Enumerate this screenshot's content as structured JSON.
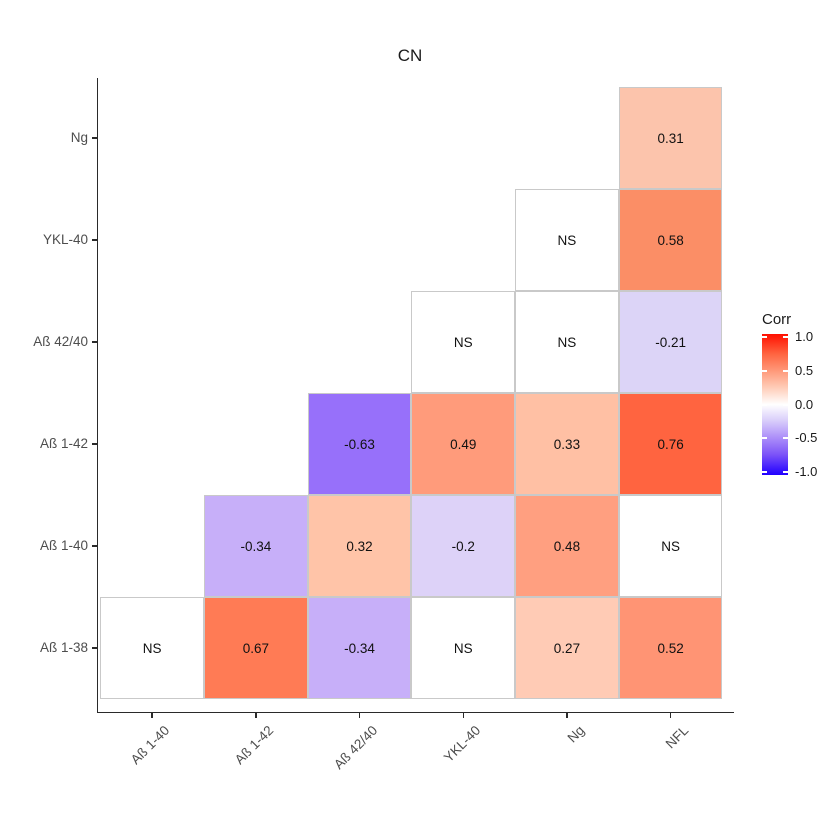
{
  "title": "CN",
  "chart_data": {
    "type": "heatmap",
    "title": "CN",
    "subtitle": "",
    "x_categories": [
      "Aß 1-40",
      "Aß 1-42",
      "Aß 42/40",
      "YKL-40",
      "Ng",
      "NFL"
    ],
    "y_categories_top_to_bottom": [
      "Ng",
      "YKL-40",
      "Aß 42/40",
      "Aß 1-42",
      "Aß 1-40",
      "Aß 1-38"
    ],
    "na_label": "NS",
    "cells": [
      {
        "row": "Ng",
        "col": "NFL",
        "label": "0.31",
        "value": 0.31,
        "color": "#FCC4AC"
      },
      {
        "row": "YKL-40",
        "col": "Ng",
        "label": "NS",
        "value": null,
        "color": "#FFFFFF"
      },
      {
        "row": "YKL-40",
        "col": "NFL",
        "label": "0.58",
        "value": 0.58,
        "color": "#FB8E66"
      },
      {
        "row": "Aß 42/40",
        "col": "YKL-40",
        "label": "NS",
        "value": null,
        "color": "#FFFFFF"
      },
      {
        "row": "Aß 42/40",
        "col": "Ng",
        "label": "NS",
        "value": null,
        "color": "#FFFFFF"
      },
      {
        "row": "Aß 42/40",
        "col": "NFL",
        "label": "-0.21",
        "value": -0.21,
        "color": "#DCD4F7"
      },
      {
        "row": "Aß 1-42",
        "col": "Aß 42/40",
        "label": "-0.63",
        "value": -0.63,
        "color": "#9770FA"
      },
      {
        "row": "Aß 1-42",
        "col": "YKL-40",
        "label": "0.49",
        "value": 0.49,
        "color": "#FF9B7B"
      },
      {
        "row": "Aß 1-42",
        "col": "Ng",
        "label": "0.33",
        "value": 0.33,
        "color": "#FFC0A4"
      },
      {
        "row": "Aß 1-42",
        "col": "NFL",
        "label": "0.76",
        "value": 0.76,
        "color": "#FF6440"
      },
      {
        "row": "Aß 1-40",
        "col": "Aß 1-42",
        "label": "-0.34",
        "value": -0.34,
        "color": "#C7AFF9"
      },
      {
        "row": "Aß 1-40",
        "col": "Aß 42/40",
        "label": "0.32",
        "value": 0.32,
        "color": "#FFC4A8"
      },
      {
        "row": "Aß 1-40",
        "col": "YKL-40",
        "label": "-0.2",
        "value": -0.2,
        "color": "#DDD2F8"
      },
      {
        "row": "Aß 1-40",
        "col": "Ng",
        "label": "0.48",
        "value": 0.48,
        "color": "#FF9F80"
      },
      {
        "row": "Aß 1-40",
        "col": "NFL",
        "label": "NS",
        "value": null,
        "color": "#FFFFFF"
      },
      {
        "row": "Aß 1-38",
        "col": "Aß 1-40",
        "label": "NS",
        "value": null,
        "color": "#FFFFFF"
      },
      {
        "row": "Aß 1-38",
        "col": "Aß 1-42",
        "label": "0.67",
        "value": 0.67,
        "color": "#FF7B55"
      },
      {
        "row": "Aß 1-38",
        "col": "Aß 42/40",
        "label": "-0.34",
        "value": -0.34,
        "color": "#C7AFF9"
      },
      {
        "row": "Aß 1-38",
        "col": "YKL-40",
        "label": "NS",
        "value": null,
        "color": "#FFFFFF"
      },
      {
        "row": "Aß 1-38",
        "col": "Ng",
        "label": "0.27",
        "value": 0.27,
        "color": "#FFCBB5"
      },
      {
        "row": "Aß 1-38",
        "col": "NFL",
        "label": "0.52",
        "value": 0.52,
        "color": "#FF9474"
      }
    ],
    "legend": {
      "title": "Corr",
      "tick_labels": [
        "1.0",
        "0.5",
        "0.0",
        "-0.5",
        "-1.0"
      ],
      "tick_values": [
        1.0,
        0.5,
        0.0,
        -0.5,
        -1.0
      ],
      "value_range": [
        -1.05,
        1.05
      ],
      "gradient_stops": [
        {
          "pos": 0,
          "color": "#FF0F00"
        },
        {
          "pos": 14.3,
          "color": "#FF6541"
        },
        {
          "pos": 26.2,
          "color": "#FF997A"
        },
        {
          "pos": 38.1,
          "color": "#FFCDB8"
        },
        {
          "pos": 50,
          "color": "#FFFFFF"
        },
        {
          "pos": 61.9,
          "color": "#D7CBFA"
        },
        {
          "pos": 73.8,
          "color": "#AB8DF9"
        },
        {
          "pos": 85.7,
          "color": "#7B52F8"
        },
        {
          "pos": 100,
          "color": "#2000FF"
        }
      ]
    },
    "style_colors": {
      "cell_border": "#C9C9C9",
      "axis_text": "#4D4D4D",
      "axis_line": "#2A2A2A",
      "cell_text": "#111111",
      "background": "#FFFFFF"
    },
    "layout_hints": {
      "triangle": "upper-offset-diagonal",
      "grid": "off",
      "legend_position": "right"
    }
  }
}
